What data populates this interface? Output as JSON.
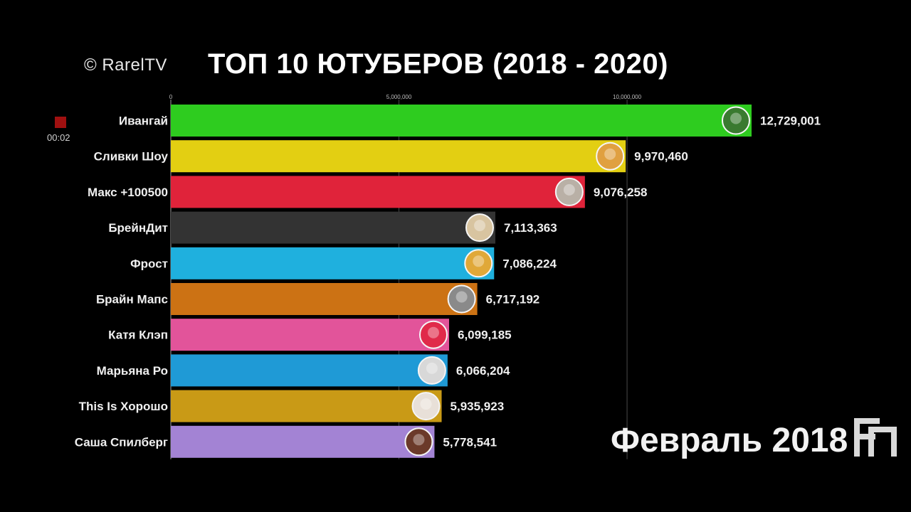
{
  "header": {
    "copyright": "© RarelTV",
    "title": "ТОП 10 ЮТУБЕРОВ (2018 - 2020)"
  },
  "recorder": {
    "time": "00:02",
    "icon": "record-indicator-icon"
  },
  "date_label": "Февраль 2018",
  "logo_icon": "channel-logo-icon",
  "chart_data": {
    "type": "bar",
    "orientation": "horizontal",
    "title": "ТОП 10 ЮТУБЕРОВ (2018 - 2020)",
    "xlabel": "",
    "ylabel": "",
    "xlim": [
      0,
      12729001
    ],
    "xticks": [
      0,
      5000000,
      10000000
    ],
    "xtick_labels": [
      "0",
      "5,000,000",
      "10,000,000"
    ],
    "grid": true,
    "categories": [
      "Ивангай",
      "Сливки Шоу",
      "Макс +100500",
      "БрейнДит",
      "Фрост",
      "Брайн Мапс",
      "Катя Клэп",
      "Марьяна Ро",
      "This Is Хорошо",
      "Саша Спилберг"
    ],
    "values": [
      12729001,
      9970460,
      9076258,
      7113363,
      7086224,
      6717192,
      6099185,
      6066204,
      5935923,
      5778541
    ],
    "value_labels": [
      "12,729,001",
      "9,970,460",
      "9,076,258",
      "7,113,363",
      "7,086,224",
      "6,717,192",
      "6,099,185",
      "6,066,204",
      "5,935,923",
      "5,778,541"
    ],
    "colors": [
      "#2ecc1f",
      "#e3cf12",
      "#e0233a",
      "#333333",
      "#1fb0de",
      "#cc7214",
      "#e2549a",
      "#1f9ad6",
      "#c99a16",
      "#a383d4"
    ],
    "avatar_colors": [
      "#3a7a30",
      "#e0a040",
      "#b9b0a6",
      "#d8c4a0",
      "#e0a838",
      "#8a8a8a",
      "#e02a4a",
      "#d8d8d8",
      "#e8e0d8",
      "#6b3a2a"
    ]
  }
}
